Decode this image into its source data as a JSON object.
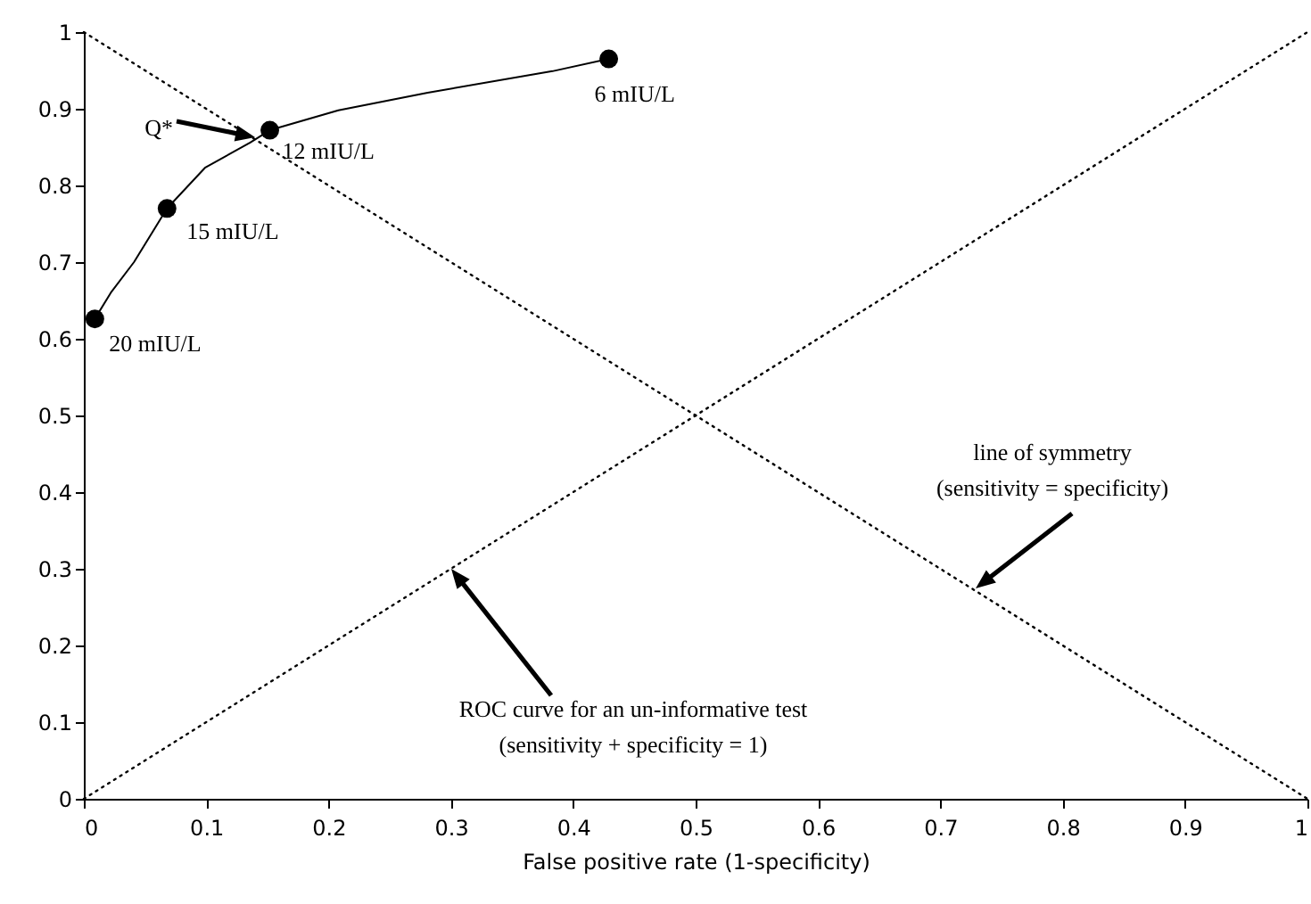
{
  "chart_data": {
    "type": "line",
    "xlabel": "False positive rate (1-specificity)",
    "xlim": [
      0,
      1
    ],
    "ylim": [
      0,
      1
    ],
    "xticks": [
      0,
      0.1,
      0.2,
      0.3,
      0.4,
      0.5,
      0.6,
      0.7,
      0.8,
      0.9,
      1
    ],
    "yticks": [
      0,
      0.1,
      0.2,
      0.3,
      0.4,
      0.5,
      0.6,
      0.7,
      0.8,
      0.9,
      1
    ],
    "grid": false,
    "series": [
      {
        "color": "#000000",
        "line_style": "dotted",
        "x": [
          0,
          1
        ],
        "values": [
          0,
          1
        ]
      },
      {
        "color": "#000000",
        "line_style": "dotted",
        "x": [
          0,
          1
        ],
        "values": [
          1,
          0
        ]
      },
      {
        "color": "#000000",
        "line_style": "solid",
        "x": [
          0.009,
          0.022,
          0.041,
          0.068,
          0.099,
          0.136,
          0.152,
          0.208,
          0.281,
          0.383,
          0.429
        ],
        "values": [
          0.626,
          0.66,
          0.7,
          0.77,
          0.823,
          0.856,
          0.872,
          0.898,
          0.921,
          0.949,
          0.965
        ]
      },
      {
        "type": "scatter",
        "color": "#000000",
        "marker": "circle",
        "x": [
          0.009,
          0.068,
          0.152,
          0.429
        ],
        "values": [
          0.626,
          0.77,
          0.872,
          0.965
        ]
      }
    ],
    "annotations": [
      {
        "text": "20 mIU/L",
        "x": 0.009,
        "y": 0.626
      },
      {
        "text": "15 mIU/L",
        "x": 0.068,
        "y": 0.77
      },
      {
        "text": "12 mIU/L",
        "x": 0.152,
        "y": 0.872
      },
      {
        "text": "6 mIU/L",
        "x": 0.429,
        "y": 0.965
      },
      "Q*",
      "line of symmetry\n(sensitivity = specificity)",
      "ROC curve for an un-informative test\n(sensitivity + specificity = 1)"
    ]
  }
}
